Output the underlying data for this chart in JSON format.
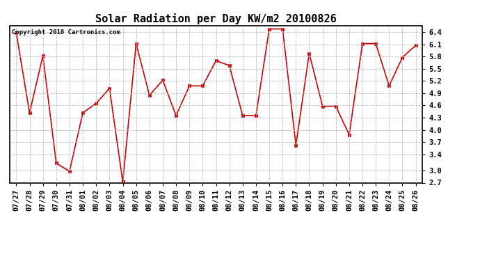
{
  "title": "Solar Radiation per Day KW/m2 20100826",
  "copyright": "Copyright 2010 Cartronics.com",
  "dates": [
    "07/27",
    "07/28",
    "07/29",
    "07/30",
    "07/31",
    "08/01",
    "08/02",
    "08/03",
    "08/04",
    "08/05",
    "08/06",
    "08/07",
    "08/08",
    "08/09",
    "08/10",
    "08/11",
    "08/12",
    "08/13",
    "08/14",
    "08/15",
    "08/16",
    "08/17",
    "08/18",
    "08/19",
    "08/20",
    "08/21",
    "08/22",
    "08/23",
    "08/24",
    "08/25",
    "08/26"
  ],
  "values": [
    6.38,
    4.42,
    5.82,
    3.18,
    2.98,
    4.42,
    4.65,
    5.02,
    2.72,
    6.12,
    4.85,
    5.22,
    4.35,
    5.08,
    5.08,
    5.7,
    5.58,
    4.35,
    4.35,
    6.48,
    6.48,
    3.62,
    5.88,
    4.58,
    4.58,
    3.88,
    6.12,
    6.12,
    5.08,
    5.78,
    6.08
  ],
  "line_color": "#cc0000",
  "marker_color": "#cc0000",
  "bg_color": "#ffffff",
  "plot_bg_color": "#ffffff",
  "grid_color": "#bbbbbb",
  "title_fontsize": 11,
  "copyright_fontsize": 6.5,
  "tick_fontsize": 7.5,
  "ylim": [
    2.7,
    6.55
  ],
  "yticks": [
    2.7,
    3.0,
    3.4,
    3.7,
    4.0,
    4.3,
    4.6,
    4.9,
    5.2,
    5.5,
    5.8,
    6.1,
    6.4
  ]
}
